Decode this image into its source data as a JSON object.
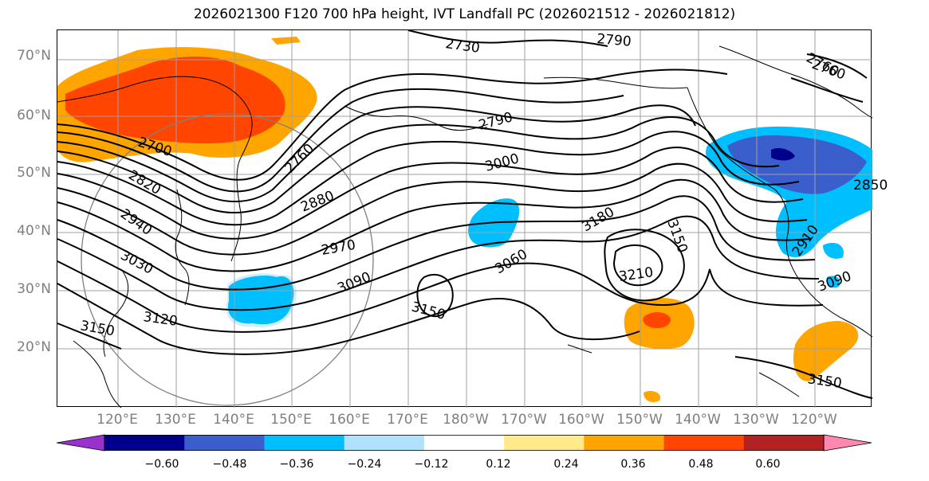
{
  "title": "2026021300 F120 700 hPa height, IVT Landfall PC (2026021512 - 2026021812)",
  "lat_labels": [
    "70°N",
    "60°N",
    "50°N",
    "40°N",
    "30°N",
    "20°N"
  ],
  "lon_labels": [
    "120°E",
    "130°E",
    "140°E",
    "150°E",
    "160°E",
    "170°E",
    "180°W",
    "170°W",
    "160°W",
    "150°W",
    "140°W",
    "130°W",
    "120°W"
  ],
  "contour_labels": [
    "2730",
    "2790",
    "2760",
    "2700",
    "2790",
    "3000",
    "2760",
    "2820",
    "2880",
    "2940",
    "2970",
    "3030",
    "3090",
    "3060",
    "3180",
    "3150",
    "3210",
    "3150",
    "3120",
    "3150",
    "2910",
    "3090",
    "3150",
    "2850",
    "2760"
  ],
  "colorbar": {
    "ticks": [
      "−0.60",
      "−0.48",
      "−0.36",
      "−0.24",
      "−0.12",
      "0.12",
      "0.24",
      "0.36",
      "0.48",
      "0.60"
    ],
    "colors": [
      "#9932cc",
      "#00008b",
      "#3a5fcd",
      "#00bfff",
      "#b0e2ff",
      "#ffffff",
      "#ffeb8c",
      "#ffa500",
      "#ff4500",
      "#b22222",
      "#ff88b0"
    ]
  }
}
